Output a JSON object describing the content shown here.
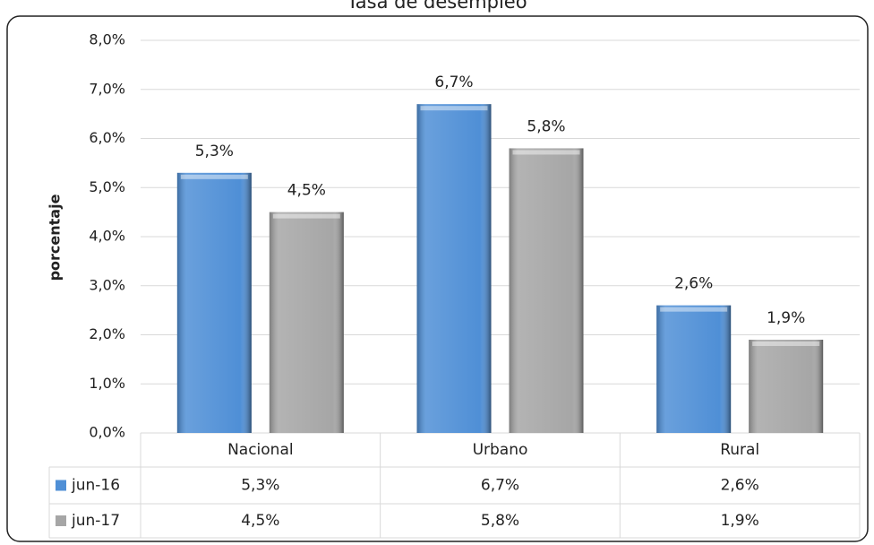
{
  "chart_data": {
    "type": "bar",
    "title": "Tasa de desempleo",
    "y_label": "porcentaje",
    "categories": [
      "Nacional",
      "Urbano",
      "Rural"
    ],
    "series": [
      {
        "name": "jun-16",
        "color": "#4f8fd6",
        "values": [
          5.3,
          6.7,
          2.6
        ],
        "value_labels": [
          "5,3%",
          "6,7%",
          "2,6%"
        ]
      },
      {
        "name": "jun-17",
        "color": "#a6a6a6",
        "values": [
          4.5,
          5.8,
          1.9
        ],
        "value_labels": [
          "4,5%",
          "5,8%",
          "1,9%"
        ]
      }
    ],
    "ylim": [
      0,
      8
    ],
    "yticks": [
      {
        "value": 0,
        "label": "0,0%"
      },
      {
        "value": 1,
        "label": "1,0%"
      },
      {
        "value": 2,
        "label": "2,0%"
      },
      {
        "value": 3,
        "label": "3,0%"
      },
      {
        "value": 4,
        "label": "4,0%"
      },
      {
        "value": 5,
        "label": "5,0%"
      },
      {
        "value": 6,
        "label": "6,0%"
      },
      {
        "value": 7,
        "label": "7,0%"
      },
      {
        "value": 8,
        "label": "8,0%"
      }
    ],
    "grid": true,
    "data_table": true
  }
}
